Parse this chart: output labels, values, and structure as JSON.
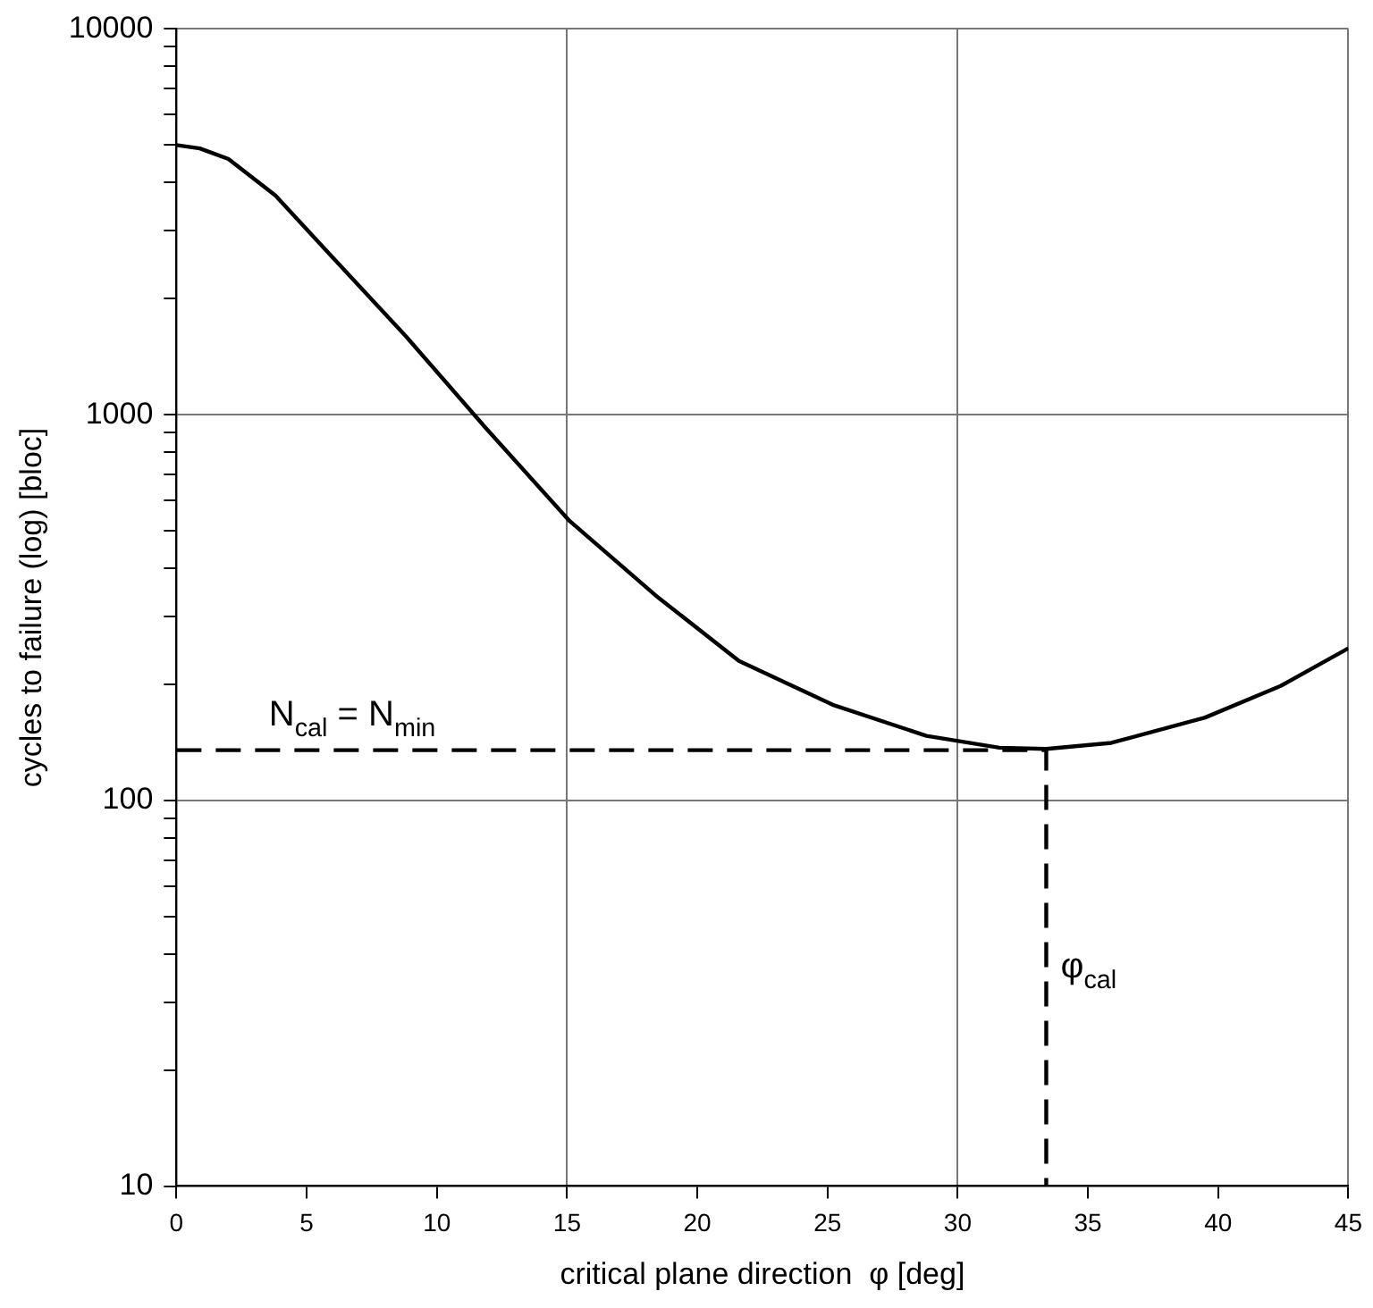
{
  "chart_data": {
    "type": "line",
    "xlabel": "critical plane direction  φ [deg]",
    "ylabel": "cycles to failure (log) [bloc]",
    "log": "y",
    "grid": true,
    "legend": false,
    "marker": "none",
    "xlim": [
      0,
      45
    ],
    "xticks": [
      0,
      {
        "value": 5,
        "label": "5"
      },
      {
        "value": 10,
        "label": "10"
      },
      15,
      {
        "value": 20,
        "label": "20"
      },
      {
        "value": 25,
        "label": "25"
      },
      30,
      {
        "value": 35,
        "label": "35"
      },
      {
        "value": 40,
        "label": "40"
      },
      45
    ],
    "ylim": [
      10,
      10000
    ],
    "yticks": [
      10,
      {
        "value": 20,
        "label": null
      },
      {
        "value": 30,
        "label": null
      },
      {
        "value": 40,
        "label": null
      },
      {
        "value": 50,
        "label": null
      },
      {
        "value": 60,
        "label": null
      },
      {
        "value": 70,
        "label": null
      },
      {
        "value": 80,
        "label": null
      },
      {
        "value": 90,
        "label": null
      },
      100,
      {
        "value": 200,
        "label": null
      },
      {
        "value": 300,
        "label": null
      },
      {
        "value": 400,
        "label": null
      },
      {
        "value": 500,
        "label": null
      },
      {
        "value": 600,
        "label": null
      },
      {
        "value": 700,
        "label": null
      },
      {
        "value": 800,
        "label": null
      },
      {
        "value": 900,
        "label": null
      },
      1000,
      {
        "value": 2000,
        "label": null
      },
      {
        "value": 3000,
        "label": null
      },
      {
        "value": 4000,
        "label": null
      },
      {
        "value": 5000,
        "label": null
      },
      {
        "value": 6000,
        "label": null
      },
      {
        "value": 7000,
        "label": null
      },
      {
        "value": 8000,
        "label": null
      },
      {
        "value": 9000,
        "label": null
      },
      10000
    ],
    "series": [
      {
        "color": "#000000",
        "line_style": "solid",
        "x": [
          0,
          0.9,
          2,
          3.8,
          5.9,
          8.8,
          11.9,
          15.1,
          18.4,
          21.6,
          25.2,
          28.8,
          31.6,
          33.4,
          35.9,
          39.5,
          42.4,
          45
        ],
        "values": [
          5000,
          4900,
          4600,
          3700,
          2600,
          1600,
          920,
          530,
          340,
          230,
          177,
          147,
          137,
          136,
          141,
          164,
          198,
          248
        ]
      },
      {
        "color": "#000000",
        "line_style": "dashed",
        "x": [
          0,
          33.4,
          33.4
        ],
        "values": [
          135,
          135,
          10
        ]
      }
    ],
    "annotations": [
      {
        "text": "N$_{cal}$ = N$_{min}$",
        "x": 3,
        "y": 135
      },
      {
        "text": "φ$_{cal}$",
        "x": 33.4,
        "y": 30
      }
    ]
  }
}
